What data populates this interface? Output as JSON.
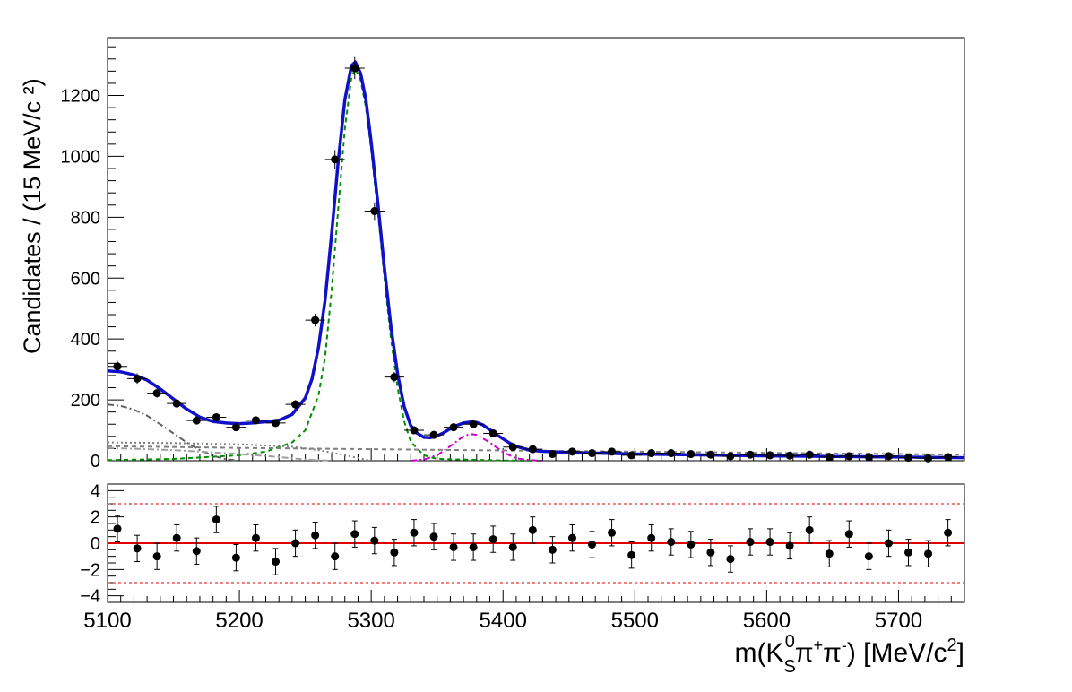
{
  "chart_data": [
    {
      "type": "scatter",
      "title": "",
      "xlabel": "m(K_S^0 π⁺π⁻) [MeV/c²]",
      "ylabel": "Candidates / (15 MeV/c ²)",
      "xlim": [
        5100,
        5750
      ],
      "ylim": [
        0,
        1390
      ],
      "x_ticks": [
        "5100",
        "5200",
        "5300",
        "5400",
        "5500",
        "5600",
        "5700"
      ],
      "y_ticks": [
        "0",
        "200",
        "400",
        "600",
        "800",
        "1000",
        "1200"
      ],
      "grid": false,
      "legend": "none",
      "bin_width": 15,
      "data_points": {
        "x": [
          5107.5,
          5122.5,
          5137.5,
          5152.5,
          5167.5,
          5182.5,
          5197.5,
          5212.5,
          5227.5,
          5242.5,
          5257.5,
          5272.5,
          5287.5,
          5302.5,
          5317.5,
          5332.5,
          5347.5,
          5362.5,
          5377.5,
          5392.5,
          5407.5,
          5422.5,
          5437.5,
          5452.5,
          5467.5,
          5482.5,
          5497.5,
          5512.5,
          5527.5,
          5542.5,
          5557.5,
          5572.5,
          5587.5,
          5602.5,
          5617.5,
          5632.5,
          5647.5,
          5662.5,
          5677.5,
          5692.5,
          5707.5,
          5722.5,
          5737.5
        ],
        "y": [
          310,
          270,
          222,
          188,
          132,
          143,
          110,
          133,
          124,
          185,
          462,
          990,
          1290,
          820,
          275,
          100,
          85,
          110,
          120,
          90,
          45,
          38,
          22,
          30,
          25,
          30,
          18,
          25,
          25,
          22,
          20,
          15,
          20,
          18,
          17,
          20,
          12,
          15,
          12,
          15,
          10,
          8,
          12
        ],
        "yerr": [
          18,
          17,
          15,
          14,
          12,
          12,
          11,
          12,
          11,
          14,
          21,
          31,
          36,
          29,
          17,
          10,
          9,
          11,
          11,
          9,
          7,
          6,
          5,
          6,
          5,
          6,
          4,
          5,
          5,
          5,
          5,
          4,
          5,
          4,
          4,
          5,
          4,
          4,
          4,
          4,
          3,
          3,
          4
        ]
      },
      "series": [
        {
          "style": "solid",
          "color": "#1010c8",
          "x": [
            5100,
            5110,
            5120,
            5130,
            5140,
            5150,
            5160,
            5170,
            5180,
            5190,
            5200,
            5210,
            5220,
            5230,
            5240,
            5250,
            5255,
            5260,
            5265,
            5270,
            5275,
            5280,
            5285,
            5288,
            5292,
            5296,
            5300,
            5305,
            5310,
            5315,
            5320,
            5325,
            5330,
            5335,
            5340,
            5345,
            5350,
            5355,
            5360,
            5365,
            5370,
            5375,
            5380,
            5385,
            5390,
            5395,
            5400,
            5405,
            5410,
            5420,
            5430,
            5450,
            5500,
            5550,
            5600,
            5650,
            5700,
            5750
          ],
          "y": [
            295,
            292,
            282,
            265,
            236,
            203,
            170,
            143,
            129,
            124,
            122,
            124,
            128,
            133,
            152,
            206,
            268,
            372,
            528,
            745,
            985,
            1185,
            1298,
            1310,
            1272,
            1185,
            1045,
            848,
            632,
            440,
            285,
            178,
            115,
            90,
            77,
            76,
            82,
            92,
            105,
            116,
            124,
            127,
            126,
            117,
            102,
            86,
            72,
            58,
            47,
            35,
            31,
            27,
            22,
            19,
            16,
            14,
            12,
            10
          ]
        },
        {
          "style": "dashed",
          "color": "#009000",
          "x": [
            5100,
            5150,
            5200,
            5220,
            5240,
            5250,
            5260,
            5265,
            5270,
            5275,
            5280,
            5285,
            5288,
            5292,
            5296,
            5300,
            5305,
            5310,
            5315,
            5320,
            5325,
            5330,
            5340,
            5350,
            5400,
            5430
          ],
          "y": [
            2,
            6,
            18,
            30,
            60,
            100,
            215,
            340,
            560,
            830,
            1090,
            1260,
            1288,
            1250,
            1160,
            1020,
            820,
            600,
            400,
            240,
            130,
            62,
            18,
            6,
            1,
            0
          ]
        },
        {
          "style": "dashdot",
          "color": "#cc00cc",
          "x": [
            5330,
            5340,
            5350,
            5360,
            5370,
            5375,
            5380,
            5390,
            5400,
            5410,
            5420,
            5430
          ],
          "y": [
            0,
            4,
            18,
            48,
            80,
            88,
            85,
            60,
            28,
            8,
            2,
            0
          ]
        },
        {
          "style": "dashdot",
          "color": "#606060",
          "x": [
            5100,
            5110,
            5120,
            5130,
            5140,
            5150,
            5160,
            5170,
            5180,
            5190,
            5200
          ],
          "y": [
            185,
            180,
            168,
            148,
            120,
            90,
            60,
            35,
            16,
            5,
            0
          ]
        },
        {
          "style": "dotted",
          "color": "#808080",
          "x": [
            5100,
            5150,
            5200,
            5240,
            5260,
            5280,
            5300
          ],
          "y": [
            60,
            58,
            54,
            46,
            35,
            18,
            0
          ]
        },
        {
          "style": "dashed",
          "color": "#808080",
          "x": [
            5100,
            5200,
            5300,
            5400,
            5500,
            5600,
            5700,
            5750
          ],
          "y": [
            48,
            42,
            38,
            34,
            30,
            26,
            22,
            20
          ]
        },
        {
          "style": "dashdot",
          "color": "#a0a0a0",
          "x": [
            5100,
            5150,
            5200,
            5230,
            5250,
            5270
          ],
          "y": [
            42,
            35,
            22,
            12,
            4,
            0
          ]
        }
      ]
    },
    {
      "type": "scatter",
      "title": "",
      "xlabel": "m(K_S^0 π⁺π⁻) [MeV/c²]",
      "ylabel": "",
      "xlim": [
        5100,
        5750
      ],
      "ylim": [
        -4.5,
        4.5
      ],
      "y_ticks": [
        "4",
        "2",
        "0",
        "−2",
        "−4"
      ],
      "reference_lines": {
        "zero": 0,
        "upper": 3,
        "lower": -3
      },
      "pulls": {
        "x": [
          5107.5,
          5122.5,
          5137.5,
          5152.5,
          5167.5,
          5182.5,
          5197.5,
          5212.5,
          5227.5,
          5242.5,
          5257.5,
          5272.5,
          5287.5,
          5302.5,
          5317.5,
          5332.5,
          5347.5,
          5362.5,
          5377.5,
          5392.5,
          5407.5,
          5422.5,
          5437.5,
          5452.5,
          5467.5,
          5482.5,
          5497.5,
          5512.5,
          5527.5,
          5542.5,
          5557.5,
          5572.5,
          5587.5,
          5602.5,
          5617.5,
          5632.5,
          5647.5,
          5662.5,
          5677.5,
          5692.5,
          5707.5,
          5722.5,
          5737.5
        ],
        "y": [
          1.1,
          -0.4,
          -1.0,
          0.4,
          -0.6,
          1.8,
          -1.1,
          0.4,
          -1.4,
          0.0,
          0.6,
          -1.0,
          0.7,
          0.2,
          -0.7,
          0.8,
          0.5,
          -0.3,
          -0.3,
          0.3,
          -0.3,
          1.0,
          -0.5,
          0.4,
          -0.1,
          0.8,
          -0.9,
          0.4,
          0.1,
          -0.1,
          -0.7,
          -1.2,
          0.1,
          0.1,
          -0.2,
          1.0,
          -0.8,
          0.7,
          -1.0,
          0.0,
          -0.7,
          -0.8,
          0.8
        ]
      }
    }
  ]
}
